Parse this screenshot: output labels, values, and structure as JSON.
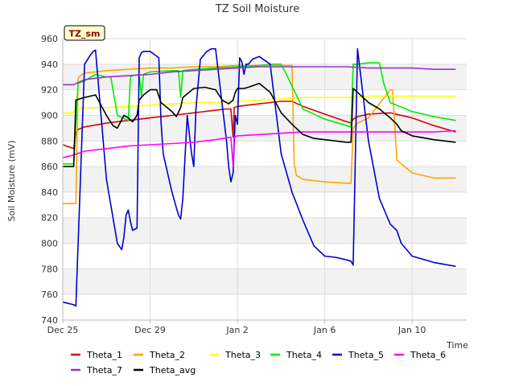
{
  "chart_data": {
    "type": "line",
    "title": "TZ Soil Moisture",
    "badge": "TZ_sm",
    "xlabel": "Time",
    "ylabel": "Soil Moisture (mV)",
    "ylim": [
      740,
      960
    ],
    "xlim": [
      0,
      18.5
    ],
    "yticks": [
      740,
      760,
      780,
      800,
      820,
      840,
      860,
      880,
      900,
      920,
      940,
      960
    ],
    "xticks": [
      {
        "value": 0,
        "label": "Dec 25"
      },
      {
        "value": 4,
        "label": "Dec 29"
      },
      {
        "value": 8,
        "label": "Jan 2"
      },
      {
        "value": 12,
        "label": "Jan 6"
      },
      {
        "value": 16,
        "label": "Jan 10"
      }
    ],
    "grid": true,
    "series": [
      {
        "name": "Theta_1",
        "color": "#dd0000",
        "x": [
          0,
          0.5,
          0.6,
          0.7,
          1,
          2,
          3,
          4,
          5,
          6,
          7,
          7.5,
          7.7,
          7.8,
          7.85,
          8,
          9,
          10,
          10.5,
          11,
          12,
          13,
          13.2,
          13.3,
          13.5,
          14,
          15,
          16,
          17,
          18
        ],
        "y": [
          877,
          874,
          886,
          889,
          891,
          894,
          896,
          898,
          900,
          902,
          904,
          905,
          905,
          883,
          906,
          907,
          909,
          911,
          911,
          907,
          901,
          895,
          894,
          897,
          899,
          901,
          902,
          898,
          892,
          887
        ]
      },
      {
        "name": "Theta_2",
        "color": "#ffa500",
        "x": [
          0,
          0.6,
          0.7,
          0.8,
          1,
          2,
          3,
          4,
          5,
          6,
          7,
          8,
          9,
          10,
          10.5,
          10.6,
          10.7,
          11,
          12,
          13,
          13.2,
          13.3,
          13.5,
          14,
          15,
          15.1,
          15.3,
          16,
          17,
          18
        ],
        "y": [
          831,
          831,
          929,
          931,
          933,
          935,
          936,
          937,
          937,
          938,
          938,
          939,
          939,
          939,
          939,
          862,
          853,
          850,
          848,
          847,
          847,
          890,
          894,
          898,
          920,
          920,
          865,
          855,
          851,
          851
        ]
      },
      {
        "name": "Theta_3",
        "color": "#ffff00",
        "x": [
          0,
          0.5,
          0.6,
          1,
          2,
          3,
          4,
          5,
          6,
          7,
          8,
          9,
          10,
          11,
          12,
          13,
          14,
          15,
          16,
          17,
          18
        ],
        "y": [
          902,
          902,
          905,
          906,
          906,
          907,
          908,
          909,
          910,
          910,
          911,
          912,
          913,
          914,
          914,
          914,
          915,
          915,
          915,
          915,
          915
        ]
      },
      {
        "name": "Theta_4",
        "color": "#00ee00",
        "x": [
          0,
          0.5,
          0.7,
          1,
          1.5,
          2,
          2.2,
          2.5,
          3,
          3.1,
          3.2,
          3.5,
          3.6,
          3.7,
          4,
          5,
          5.3,
          5.4,
          5.5,
          6,
          7,
          8,
          9,
          9.6,
          10,
          10.3,
          11,
          12,
          13,
          13.2,
          13.3,
          13.5,
          14,
          14.5,
          14.7,
          15,
          16,
          17,
          18
        ],
        "y": [
          862,
          862,
          925,
          927,
          932,
          930,
          930,
          900,
          896,
          930,
          931,
          932,
          915,
          932,
          934,
          935,
          935,
          914,
          935,
          936,
          937,
          938,
          939,
          940,
          940,
          930,
          905,
          897,
          892,
          891,
          940,
          940,
          941,
          941,
          925,
          910,
          903,
          899,
          896
        ]
      },
      {
        "name": "Theta_5",
        "color": "#0000cc",
        "x": [
          0,
          0.5,
          0.6,
          1,
          1.3,
          1.4,
          1.5,
          2,
          2.5,
          2.7,
          2.8,
          2.9,
          3.0,
          3.1,
          3.2,
          3.4,
          3.5,
          3.6,
          3.7,
          4,
          4.4,
          4.5,
          4.6,
          5,
          5.3,
          5.4,
          5.5,
          5.7,
          5.9,
          6.0,
          6.1,
          6.3,
          6.5,
          6.6,
          6.8,
          7,
          7.5,
          7.6,
          7.7,
          7.8,
          7.9,
          8,
          8.1,
          8.2,
          8.3,
          8.4,
          8.5,
          8.7,
          9,
          9.5,
          10,
          10.5,
          11,
          11.5,
          12,
          12.5,
          13,
          13.2,
          13.3,
          13.5,
          14,
          14.5,
          15,
          15.3,
          15.5,
          16,
          17,
          18
        ],
        "y": [
          754,
          752,
          751,
          940,
          948,
          950,
          951,
          850,
          800,
          795,
          805,
          822,
          826,
          817,
          810,
          812,
          945,
          949,
          950,
          950,
          945,
          895,
          870,
          840,
          822,
          819,
          835,
          900,
          870,
          860,
          905,
          944,
          948,
          950,
          952,
          952,
          880,
          860,
          848,
          855,
          900,
          893,
          945,
          942,
          932,
          940,
          940,
          944,
          946,
          940,
          870,
          840,
          818,
          798,
          790,
          789,
          787,
          786,
          783,
          952,
          880,
          835,
          815,
          810,
          800,
          790,
          785,
          782
        ]
      },
      {
        "name": "Theta_6",
        "color": "#ff00ff",
        "x": [
          0,
          0.5,
          1,
          2,
          3,
          4,
          5,
          6,
          7,
          7.7,
          7.8,
          7.85,
          8,
          9,
          10,
          11,
          12,
          13,
          14,
          15,
          16,
          17,
          18
        ],
        "y": [
          867,
          869,
          872,
          874,
          876,
          877,
          878,
          879,
          881,
          883,
          860,
          883,
          884,
          885,
          886,
          887,
          887,
          887,
          887,
          887,
          887,
          887,
          888
        ]
      },
      {
        "name": "Theta_7",
        "color": "#9932cc",
        "x": [
          0,
          0.5,
          1,
          2,
          3,
          4,
          5,
          6,
          7,
          8,
          9,
          10,
          11,
          12,
          13,
          14,
          15,
          16,
          17,
          18
        ],
        "y": [
          924,
          924,
          928,
          930,
          931,
          932,
          934,
          935,
          936,
          937,
          938,
          938,
          938,
          938,
          938,
          937,
          937,
          937,
          936,
          936
        ]
      },
      {
        "name": "Theta_avg",
        "color": "#000000",
        "x": [
          0,
          0.5,
          0.6,
          1,
          1.5,
          2,
          2.3,
          2.5,
          2.8,
          3,
          3.2,
          3.4,
          3.5,
          3.7,
          4,
          4.3,
          4.5,
          5,
          5.2,
          5.4,
          5.5,
          6,
          6.5,
          7,
          7.3,
          7.6,
          7.8,
          7.9,
          8,
          8.3,
          8.5,
          9,
          9.5,
          10,
          10.5,
          11,
          11.5,
          12,
          12.5,
          13,
          13.2,
          13.3,
          13.5,
          14,
          14.5,
          15,
          15.3,
          15.5,
          16,
          17,
          18
        ],
        "y": [
          860,
          860,
          912,
          914,
          916,
          900,
          892,
          890,
          900,
          898,
          895,
          900,
          912,
          916,
          920,
          920,
          910,
          903,
          899,
          906,
          914,
          921,
          922,
          920,
          912,
          909,
          912,
          918,
          921,
          921,
          922,
          925,
          918,
          902,
          893,
          885,
          882,
          881,
          880,
          879,
          879,
          921,
          918,
          910,
          905,
          898,
          893,
          888,
          884,
          881,
          879
        ]
      }
    ]
  }
}
